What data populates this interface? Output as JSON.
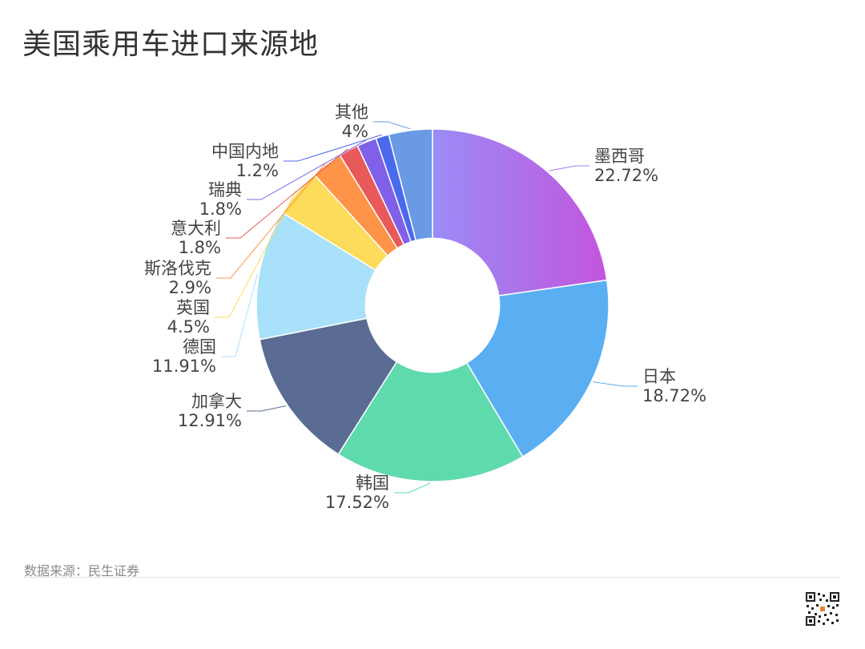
{
  "title": "美国乘用车进口来源地",
  "source": "数据来源：民生证券",
  "chart_data": {
    "type": "pie",
    "title": "美国乘用车进口来源地",
    "inner_radius_ratio": 0.38,
    "slices": [
      {
        "label": "墨西哥",
        "value": 22.72,
        "value_text": "22.72%",
        "color": "#a57cf0",
        "gradient": [
          "#9a8cf6",
          "#c255dd"
        ]
      },
      {
        "label": "日本",
        "value": 18.72,
        "value_text": "18.72%",
        "color": "#5aaef2"
      },
      {
        "label": "韩国",
        "value": 17.52,
        "value_text": "17.52%",
        "color": "#5fdaad"
      },
      {
        "label": "加拿大",
        "value": 12.91,
        "value_text": "12.91%",
        "color": "#5a6c94"
      },
      {
        "label": "德国",
        "value": 11.91,
        "value_text": "11.91%",
        "color": "#a9e0fa"
      },
      {
        "label": "英国",
        "value": 4.5,
        "value_text": "4.5%",
        "color": "#fddb5b"
      },
      {
        "label": "斯洛伐克",
        "value": 2.9,
        "value_text": "2.9%",
        "color": "#fd9448"
      },
      {
        "label": "意大利",
        "value": 1.8,
        "value_text": "1.8%",
        "color": "#e85a5a"
      },
      {
        "label": "瑞典",
        "value": 1.8,
        "value_text": "1.8%",
        "color": "#8060e8"
      },
      {
        "label": "中国内地",
        "value": 1.2,
        "value_text": "1.2%",
        "color": "#4a69ec"
      },
      {
        "label": "其他",
        "value": 4,
        "value_text": "4%",
        "color": "#6a9ae6"
      }
    ]
  }
}
